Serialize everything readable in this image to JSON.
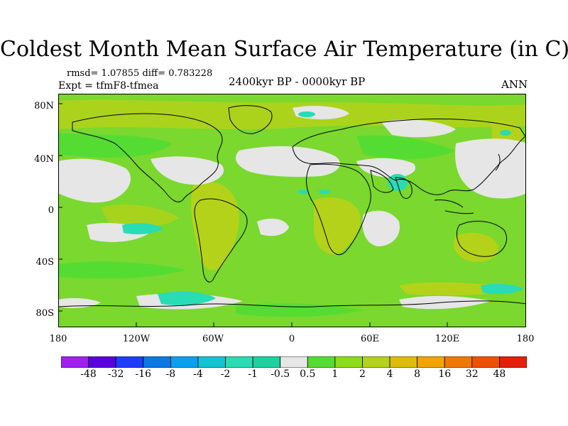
{
  "figure": {
    "title": "Coldest Month Mean Surface Air Temperature (in C)",
    "stats": "rmsd= 1.07855 diff= 0.783228",
    "experiment": "Expt = tfmF8-tfmea",
    "period": "2400kyr BP - 0000kyr BP",
    "season": "ANN"
  },
  "axes": {
    "lat_labels": [
      "80N",
      "40N",
      "0",
      "40S",
      "80S"
    ],
    "lon_labels": [
      "180",
      "120W",
      "60W",
      "0",
      "60E",
      "120E",
      "180"
    ]
  },
  "colorbar": {
    "labels": [
      "-48",
      "-32",
      "-16",
      "-8",
      "-4",
      "-2",
      "-1",
      "-0.5",
      "0.5",
      "1",
      "2",
      "4",
      "8",
      "16",
      "32",
      "48"
    ],
    "colors": [
      "#a020f0",
      "#5a00e0",
      "#1e3cff",
      "#0a78e6",
      "#0aa0f0",
      "#14c3d2",
      "#28dcb4",
      "#1ed2a0",
      "#e6e6e6",
      "#55dc32",
      "#8cdc19",
      "#b4d219",
      "#dcbe0a",
      "#f0a500",
      "#f07800",
      "#f05000",
      "#e61e0a"
    ]
  },
  "palette": {
    "zero": "#e6e6e6",
    "warm1": "#55dc32",
    "warm2": "#8cdc19",
    "warm3": "#b4d219",
    "cool1": "#28dcb4",
    "ocean_bg": "#7ad82e",
    "coast": "#000000"
  }
}
